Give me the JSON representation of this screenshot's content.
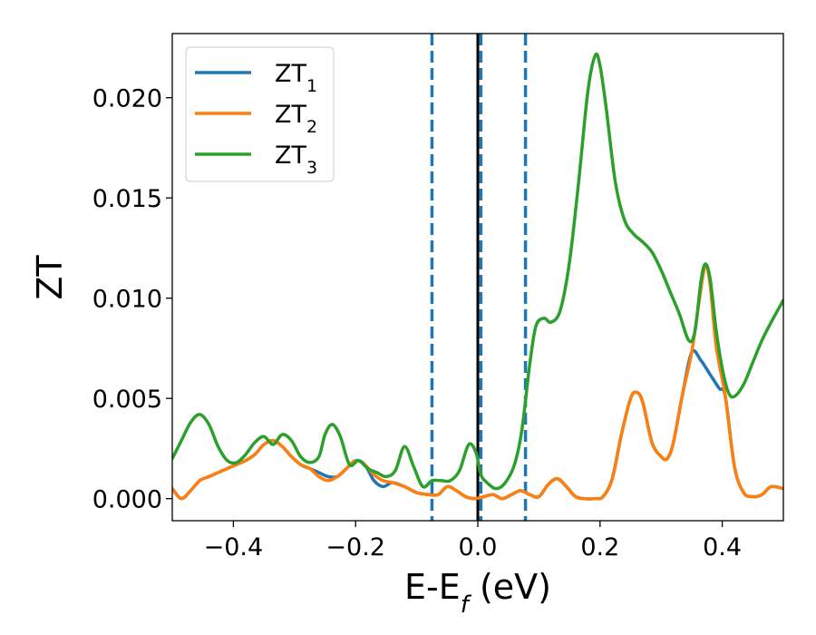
{
  "chart_data": {
    "type": "line",
    "xlabel": "E-E",
    "xlabel_sub": "f",
    "xlabel_unit": " (eV)",
    "ylabel": "ZT",
    "xlim": [
      -0.5,
      0.5
    ],
    "ylim": [
      -0.0011,
      0.0232
    ],
    "grid": false,
    "legend_position": "top-left",
    "x_ticks": [
      -0.4,
      -0.2,
      0.0,
      0.2,
      0.4
    ],
    "x_tick_labels": [
      "−0.4",
      "−0.2",
      "0.0",
      "0.2",
      "0.4"
    ],
    "y_ticks": [
      0.0,
      0.005,
      0.01,
      0.015,
      0.02
    ],
    "y_tick_labels": [
      "0.000",
      "0.005",
      "0.010",
      "0.015",
      "0.020"
    ],
    "reference_lines": [
      {
        "x": -0.075,
        "style": "dashed",
        "color": "#1f77b4"
      },
      {
        "x": 0.0,
        "style": "solid",
        "color": "#000000"
      },
      {
        "x": 0.005,
        "style": "dashed",
        "color": "#1f77b4"
      },
      {
        "x": 0.078,
        "style": "dashed",
        "color": "#1f77b4"
      }
    ],
    "series": [
      {
        "name": "ZT",
        "name_sub": "1",
        "color": "#1f77b4",
        "points": [
          [
            -0.5,
            0.0005
          ],
          [
            -0.485,
            0.0
          ],
          [
            -0.47,
            0.0004
          ],
          [
            -0.455,
            0.0009
          ],
          [
            -0.44,
            0.0011
          ],
          [
            -0.425,
            0.0013
          ],
          [
            -0.41,
            0.0015
          ],
          [
            -0.395,
            0.0017
          ],
          [
            -0.38,
            0.0019
          ],
          [
            -0.365,
            0.0022
          ],
          [
            -0.35,
            0.0027
          ],
          [
            -0.335,
            0.0029
          ],
          [
            -0.32,
            0.0026
          ],
          [
            -0.305,
            0.0021
          ],
          [
            -0.29,
            0.0017
          ],
          [
            -0.275,
            0.0015
          ],
          [
            -0.26,
            0.0013
          ],
          [
            -0.245,
            0.0011
          ],
          [
            -0.23,
            0.0011
          ],
          [
            -0.215,
            0.0015
          ],
          [
            -0.2,
            0.0019
          ],
          [
            -0.185,
            0.0017
          ],
          [
            -0.17,
            0.0009
          ],
          [
            -0.155,
            0.0006
          ],
          [
            -0.14,
            0.0008
          ],
          [
            -0.12,
            0.0006
          ],
          [
            -0.1,
            0.0003
          ],
          [
            -0.08,
            0.0002
          ],
          [
            -0.065,
            0.0002
          ],
          [
            -0.05,
            0.0006
          ],
          [
            -0.035,
            0.0004
          ],
          [
            -0.02,
            0.0001
          ],
          [
            -0.005,
            0.0
          ],
          [
            0.01,
            0.0001
          ],
          [
            0.025,
            0.0002
          ],
          [
            0.04,
            0.0
          ],
          [
            0.055,
            0.0002
          ],
          [
            0.07,
            0.0004
          ],
          [
            0.085,
            0.0002
          ],
          [
            0.1,
            0.0001
          ],
          [
            0.115,
            0.0007
          ],
          [
            0.13,
            0.001
          ],
          [
            0.145,
            0.0006
          ],
          [
            0.16,
            0.0001
          ],
          [
            0.175,
            0.0
          ],
          [
            0.19,
            0.0
          ],
          [
            0.205,
            0.0001
          ],
          [
            0.22,
            0.001
          ],
          [
            0.235,
            0.0032
          ],
          [
            0.25,
            0.005
          ],
          [
            0.26,
            0.0053
          ],
          [
            0.27,
            0.0048
          ],
          [
            0.285,
            0.0028
          ],
          [
            0.3,
            0.0021
          ],
          [
            0.31,
            0.002
          ],
          [
            0.32,
            0.0028
          ],
          [
            0.335,
            0.0052
          ],
          [
            0.35,
            0.0073
          ],
          [
            0.365,
            0.0069
          ],
          [
            0.38,
            0.0062
          ],
          [
            0.395,
            0.0055
          ],
          [
            0.405,
            0.0051
          ],
          [
            0.42,
            0.0016
          ],
          [
            0.435,
            0.0003
          ],
          [
            0.45,
            0.0001
          ],
          [
            0.465,
            0.0002
          ],
          [
            0.48,
            0.0006
          ],
          [
            0.5,
            0.0005
          ]
        ]
      },
      {
        "name": "ZT",
        "name_sub": "2",
        "color": "#ff7f0e",
        "points": [
          [
            -0.5,
            0.0005
          ],
          [
            -0.485,
            0.0
          ],
          [
            -0.47,
            0.0004
          ],
          [
            -0.455,
            0.0009
          ],
          [
            -0.44,
            0.0011
          ],
          [
            -0.425,
            0.0013
          ],
          [
            -0.41,
            0.0015
          ],
          [
            -0.395,
            0.0017
          ],
          [
            -0.38,
            0.0019
          ],
          [
            -0.365,
            0.0022
          ],
          [
            -0.35,
            0.0027
          ],
          [
            -0.335,
            0.0029
          ],
          [
            -0.32,
            0.0026
          ],
          [
            -0.305,
            0.0021
          ],
          [
            -0.29,
            0.0017
          ],
          [
            -0.275,
            0.0015
          ],
          [
            -0.26,
            0.0011
          ],
          [
            -0.245,
            0.0009
          ],
          [
            -0.23,
            0.0011
          ],
          [
            -0.215,
            0.0015
          ],
          [
            -0.2,
            0.0019
          ],
          [
            -0.185,
            0.0017
          ],
          [
            -0.17,
            0.0012
          ],
          [
            -0.155,
            0.0009
          ],
          [
            -0.14,
            0.0008
          ],
          [
            -0.12,
            0.0006
          ],
          [
            -0.1,
            0.0003
          ],
          [
            -0.08,
            0.0002
          ],
          [
            -0.065,
            0.0002
          ],
          [
            -0.05,
            0.0006
          ],
          [
            -0.035,
            0.0004
          ],
          [
            -0.02,
            0.0001
          ],
          [
            -0.005,
            0.0
          ],
          [
            0.01,
            0.0001
          ],
          [
            0.025,
            0.0002
          ],
          [
            0.04,
            0.0
          ],
          [
            0.055,
            0.0002
          ],
          [
            0.07,
            0.0004
          ],
          [
            0.085,
            0.0002
          ],
          [
            0.1,
            0.0001
          ],
          [
            0.115,
            0.0007
          ],
          [
            0.13,
            0.001
          ],
          [
            0.145,
            0.0006
          ],
          [
            0.16,
            0.0001
          ],
          [
            0.175,
            0.0
          ],
          [
            0.19,
            0.0
          ],
          [
            0.205,
            0.0001
          ],
          [
            0.22,
            0.001
          ],
          [
            0.235,
            0.0032
          ],
          [
            0.25,
            0.005
          ],
          [
            0.26,
            0.0053
          ],
          [
            0.27,
            0.0048
          ],
          [
            0.285,
            0.0028
          ],
          [
            0.3,
            0.0021
          ],
          [
            0.31,
            0.002
          ],
          [
            0.32,
            0.0028
          ],
          [
            0.335,
            0.0052
          ],
          [
            0.35,
            0.0073
          ],
          [
            0.362,
            0.0098
          ],
          [
            0.372,
            0.0116
          ],
          [
            0.38,
            0.0107
          ],
          [
            0.39,
            0.0076
          ],
          [
            0.405,
            0.0051
          ],
          [
            0.42,
            0.0016
          ],
          [
            0.435,
            0.0003
          ],
          [
            0.45,
            0.0001
          ],
          [
            0.465,
            0.0002
          ],
          [
            0.48,
            0.0006
          ],
          [
            0.5,
            0.0005
          ]
        ]
      },
      {
        "name": "ZT",
        "name_sub": "3",
        "color": "#2ca02c",
        "points": [
          [
            -0.5,
            0.002
          ],
          [
            -0.485,
            0.0029
          ],
          [
            -0.47,
            0.0038
          ],
          [
            -0.455,
            0.0042
          ],
          [
            -0.44,
            0.0037
          ],
          [
            -0.425,
            0.0026
          ],
          [
            -0.41,
            0.0019
          ],
          [
            -0.395,
            0.0018
          ],
          [
            -0.38,
            0.0022
          ],
          [
            -0.365,
            0.0028
          ],
          [
            -0.35,
            0.0031
          ],
          [
            -0.335,
            0.0027
          ],
          [
            -0.32,
            0.0032
          ],
          [
            -0.305,
            0.0029
          ],
          [
            -0.29,
            0.0021
          ],
          [
            -0.275,
            0.0018
          ],
          [
            -0.26,
            0.0021
          ],
          [
            -0.25,
            0.0032
          ],
          [
            -0.238,
            0.0037
          ],
          [
            -0.225,
            0.0031
          ],
          [
            -0.21,
            0.0017
          ],
          [
            -0.195,
            0.0019
          ],
          [
            -0.18,
            0.0015
          ],
          [
            -0.165,
            0.0013
          ],
          [
            -0.15,
            0.0011
          ],
          [
            -0.135,
            0.0014
          ],
          [
            -0.12,
            0.0026
          ],
          [
            -0.105,
            0.0016
          ],
          [
            -0.09,
            0.0006
          ],
          [
            -0.075,
            0.0009
          ],
          [
            -0.06,
            0.0009
          ],
          [
            -0.045,
            0.0009
          ],
          [
            -0.03,
            0.0014
          ],
          [
            -0.015,
            0.0027
          ],
          [
            -0.003,
            0.0023
          ],
          [
            0.005,
            0.0012
          ],
          [
            0.015,
            0.0008
          ],
          [
            0.03,
            0.0005
          ],
          [
            0.045,
            0.0008
          ],
          [
            0.06,
            0.0017
          ],
          [
            0.072,
            0.0034
          ],
          [
            0.085,
            0.0067
          ],
          [
            0.095,
            0.0086
          ],
          [
            0.108,
            0.009
          ],
          [
            0.12,
            0.0088
          ],
          [
            0.135,
            0.0094
          ],
          [
            0.15,
            0.0118
          ],
          [
            0.165,
            0.0158
          ],
          [
            0.18,
            0.0203
          ],
          [
            0.192,
            0.0221
          ],
          [
            0.2,
            0.0216
          ],
          [
            0.21,
            0.0195
          ],
          [
            0.225,
            0.0158
          ],
          [
            0.24,
            0.0139
          ],
          [
            0.255,
            0.0132
          ],
          [
            0.27,
            0.0128
          ],
          [
            0.285,
            0.0123
          ],
          [
            0.3,
            0.0114
          ],
          [
            0.315,
            0.0103
          ],
          [
            0.33,
            0.0092
          ],
          [
            0.345,
            0.0079
          ],
          [
            0.355,
            0.0083
          ],
          [
            0.365,
            0.0108
          ],
          [
            0.372,
            0.0117
          ],
          [
            0.38,
            0.011
          ],
          [
            0.39,
            0.0084
          ],
          [
            0.4,
            0.0065
          ],
          [
            0.41,
            0.0053
          ],
          [
            0.42,
            0.0051
          ],
          [
            0.435,
            0.0057
          ],
          [
            0.45,
            0.0068
          ],
          [
            0.465,
            0.0079
          ],
          [
            0.48,
            0.0088
          ],
          [
            0.5,
            0.0099
          ]
        ]
      }
    ]
  }
}
